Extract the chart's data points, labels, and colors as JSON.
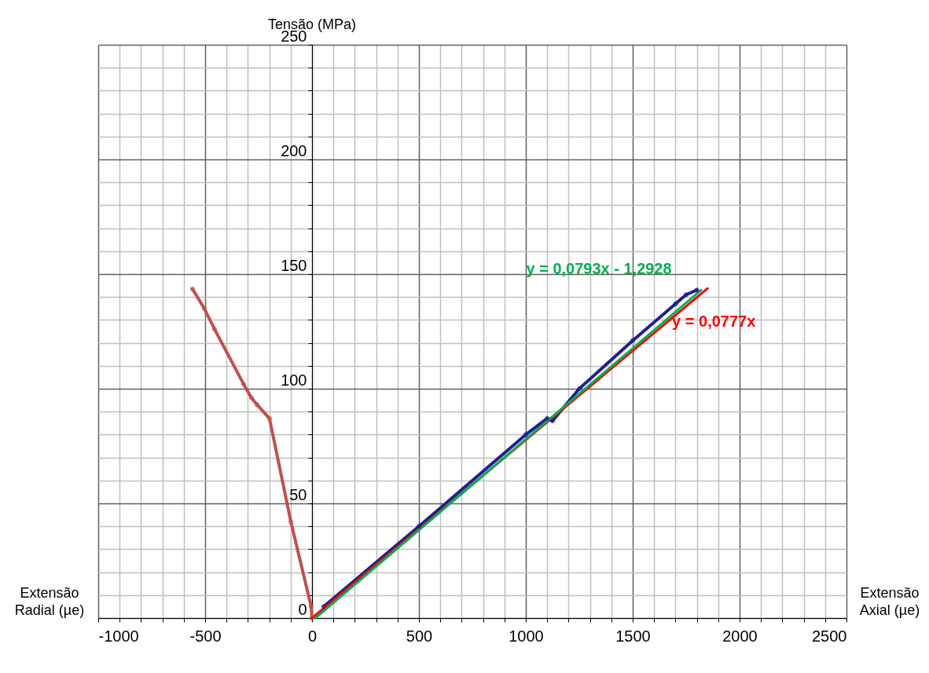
{
  "chart_data": {
    "type": "line",
    "ylabel": "Tensão (MPa)",
    "xlabel": "Extensão Axial (µe)",
    "annotations": [
      "Extensão Radial (µe)",
      "y = 0,0793x - 1,2928",
      "y = 0,0777x"
    ],
    "xlim": [
      -1000,
      2500
    ],
    "ylim": [
      0,
      250
    ],
    "xticks": [
      -1000,
      {
        "value": -900,
        "label": null
      },
      {
        "value": -800,
        "label": null
      },
      {
        "value": -700,
        "label": null
      },
      {
        "value": -600,
        "label": null
      },
      -500,
      {
        "value": -400,
        "label": null
      },
      {
        "value": -300,
        "label": null
      },
      {
        "value": -200,
        "label": null
      },
      {
        "value": -100,
        "label": null
      },
      0,
      {
        "value": 100,
        "label": null
      },
      {
        "value": 200,
        "label": null
      },
      {
        "value": 300,
        "label": null
      },
      {
        "value": 400,
        "label": null
      },
      500,
      {
        "value": 600,
        "label": null
      },
      {
        "value": 700,
        "label": null
      },
      {
        "value": 800,
        "label": null
      },
      {
        "value": 900,
        "label": null
      },
      1000,
      {
        "value": 1100,
        "label": null
      },
      {
        "value": 1200,
        "label": null
      },
      {
        "value": 1300,
        "label": null
      },
      {
        "value": 1400,
        "label": null
      },
      1500,
      {
        "value": 1600,
        "label": null
      },
      {
        "value": 1700,
        "label": null
      },
      {
        "value": 1800,
        "label": null
      },
      {
        "value": 1900,
        "label": null
      },
      2000,
      {
        "value": 2100,
        "label": null
      },
      {
        "value": 2200,
        "label": null
      },
      {
        "value": 2300,
        "label": null
      },
      {
        "value": 2400,
        "label": null
      },
      2500
    ],
    "yticks": [
      0,
      {
        "value": 10,
        "label": null
      },
      {
        "value": 20,
        "label": null
      },
      {
        "value": 30,
        "label": null
      },
      {
        "value": 40,
        "label": null
      },
      50,
      {
        "value": 60,
        "label": null
      },
      {
        "value": 70,
        "label": null
      },
      {
        "value": 80,
        "label": null
      },
      {
        "value": 90,
        "label": null
      },
      100,
      {
        "value": 110,
        "label": null
      },
      {
        "value": 120,
        "label": null
      },
      {
        "value": 130,
        "label": null
      },
      {
        "value": 140,
        "label": null
      },
      150,
      {
        "value": 160,
        "label": null
      },
      {
        "value": 170,
        "label": null
      },
      {
        "value": 180,
        "label": null
      },
      {
        "value": 190,
        "label": null
      },
      200,
      {
        "value": 210,
        "label": null
      },
      {
        "value": 220,
        "label": null
      },
      {
        "value": 230,
        "label": null
      },
      {
        "value": 240,
        "label": null
      },
      250
    ],
    "grid": true,
    "marker": "circle",
    "line_style": "solid",
    "series": [
      {
        "color": "#c0504d",
        "x": [
          0,
          -4,
          -99,
          -199,
          -257,
          -283,
          -320,
          -456,
          -504,
          -559
        ],
        "values": [
          0,
          5,
          42,
          87,
          93,
          96,
          102,
          126,
          135,
          143.5
        ]
      },
      {
        "color": "#1f1f8f",
        "x": [
          55,
          500,
          1000,
          1100,
          1125,
          1250,
          1500,
          1700,
          1750,
          1800
        ],
        "values": [
          5,
          40,
          80,
          87,
          86,
          100,
          121,
          137,
          141,
          143
        ]
      },
      {
        "color": "#ff0000",
        "marker": "none",
        "x": [
          0,
          1850
        ],
        "values": [
          0,
          143.7
        ]
      },
      {
        "color": "#00b050",
        "marker": "none",
        "x": [
          16,
          1820
        ],
        "values": [
          0,
          143
        ]
      }
    ]
  }
}
